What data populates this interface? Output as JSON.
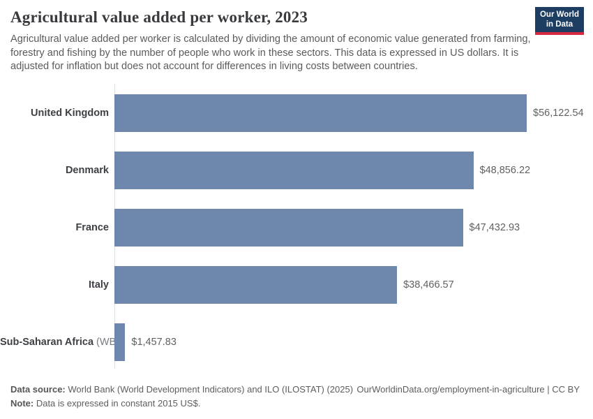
{
  "header": {
    "title": "Agricultural value added per worker, 2023",
    "subtitle": "Agricultural value added per worker is calculated by dividing the amount of economic value generated from farming, forestry and fishing by the number of people who work in these sectors. This data is expressed in US dollars. It is adjusted for inflation but does not account for differences in living costs between countries.",
    "logo": {
      "line1": "Our World",
      "line2": "in Data"
    }
  },
  "chart_data": {
    "type": "bar",
    "orientation": "horizontal",
    "title": "Agricultural value added per worker, 2023",
    "unit": "constant 2015 US$",
    "categories": [
      "United Kingdom",
      "Denmark",
      "France",
      "Italy",
      "Sub-Saharan Africa"
    ],
    "label_suffixes": [
      "",
      "",
      "",
      "",
      " (WB)"
    ],
    "values": [
      56122.54,
      48856.22,
      47432.93,
      38466.57,
      1457.83
    ],
    "value_labels": [
      "$56,122.54",
      "$48,856.22",
      "$47,432.93",
      "$38,466.57",
      "$1,457.83"
    ],
    "xlim": [
      0,
      56122.54
    ],
    "grid": false,
    "legend": "none",
    "bar_color": "#6d87ad"
  },
  "footer": {
    "source_label": "Data source:",
    "source_text": " World Bank (World Development Indicators) and ILO (ILOSTAT) (2025)",
    "link_text": "OurWorldinData.org/employment-in-agriculture | CC BY",
    "note_label": "Note:",
    "note_text": " Data is expressed in constant 2015 US$."
  },
  "colors": {
    "bar": "#6d87ad",
    "axis_line": "#dedede",
    "logo_background": "#1d3d63",
    "logo_underline": "#d6293e",
    "title_text": "#383a3d",
    "subtitle_text": "#5b5b5b"
  }
}
